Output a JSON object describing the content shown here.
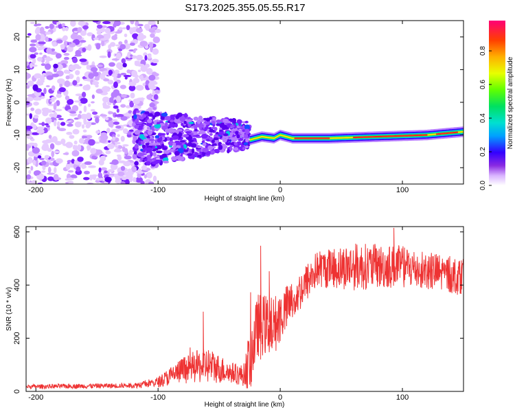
{
  "chart_data": [
    {
      "type": "heatmap",
      "title": "S173.2025.355.05.55.R17",
      "xlabel": "Height of straight line (km)",
      "ylabel": "Frequency (Hz)",
      "xlim": [
        -208,
        150
      ],
      "ylim": [
        -25,
        25
      ],
      "xticks": [
        {
          "value": -200,
          "label": "-200"
        },
        {
          "value": -100,
          "label": "-100"
        },
        {
          "value": 0,
          "label": "0"
        },
        {
          "value": 100,
          "label": "100"
        }
      ],
      "yticks": [
        {
          "value": -20,
          "label": "-20"
        },
        {
          "value": -10,
          "label": "-10"
        },
        {
          "value": 0,
          "label": "0"
        },
        {
          "value": 10,
          "label": "10"
        },
        {
          "value": 20,
          "label": "20"
        }
      ],
      "colorbar": {
        "label": "Normalized spectral amplitude",
        "range": [
          0.0,
          0.98
        ],
        "ticks": [
          {
            "value": 0.0,
            "label": "0.0"
          },
          {
            "value": 0.2,
            "label": "0.2"
          },
          {
            "value": 0.4,
            "label": "0.4"
          },
          {
            "value": 0.6,
            "label": "0.6"
          },
          {
            "value": 0.8,
            "label": "0.8"
          }
        ]
      },
      "features": [
        {
          "name": "Scattered noise region",
          "x": [
            -208,
            -100
          ],
          "y": [
            -25,
            25
          ],
          "amplitude": 0.1
        },
        {
          "name": "Dispersed cloud",
          "x": [
            -120,
            -25
          ],
          "y": [
            -22,
            -2
          ],
          "amplitude": 0.15
        },
        {
          "name": "Narrow band",
          "x": [
            -25,
            150
          ],
          "y": [
            -12,
            -9
          ],
          "peak_amplitude": 0.95
        }
      ],
      "band_trace": [
        {
          "x": -25,
          "y": -11.5
        },
        {
          "x": -15,
          "y": -10.5
        },
        {
          "x": -5,
          "y": -11
        },
        {
          "x": 0,
          "y": -10
        },
        {
          "x": 10,
          "y": -11
        },
        {
          "x": 40,
          "y": -11
        },
        {
          "x": 80,
          "y": -10.5
        },
        {
          "x": 120,
          "y": -10
        },
        {
          "x": 150,
          "y": -9
        }
      ]
    },
    {
      "type": "line",
      "xlabel": "Height of straight line (km)",
      "ylabel": "SNR (10 * v/v)",
      "xlim": [
        -208,
        150
      ],
      "ylim": [
        0,
        620
      ],
      "xticks": [
        {
          "value": -200,
          "label": "-200"
        },
        {
          "value": -100,
          "label": "-100"
        },
        {
          "value": 0,
          "label": "0"
        },
        {
          "value": 100,
          "label": "100"
        }
      ],
      "yticks": [
        {
          "value": 0,
          "label": "0"
        },
        {
          "value": 200,
          "label": "200"
        },
        {
          "value": 400,
          "label": "400"
        },
        {
          "value": 600,
          "label": "600"
        }
      ],
      "series": [
        {
          "name": "SNR",
          "color": "#ee3333",
          "envelope": [
            {
              "x": -208,
              "center": 18,
              "spread": 8
            },
            {
              "x": -120,
              "center": 22,
              "spread": 10
            },
            {
              "x": -100,
              "center": 35,
              "spread": 20
            },
            {
              "x": -80,
              "center": 80,
              "spread": 50
            },
            {
              "x": -60,
              "center": 100,
              "spread": 70
            },
            {
              "x": -40,
              "center": 70,
              "spread": 40
            },
            {
              "x": -30,
              "center": 60,
              "spread": 40
            },
            {
              "x": -25,
              "center": 120,
              "spread": 120
            },
            {
              "x": -18,
              "center": 250,
              "spread": 120
            },
            {
              "x": -5,
              "center": 250,
              "spread": 110
            },
            {
              "x": 10,
              "center": 340,
              "spread": 80
            },
            {
              "x": 30,
              "center": 460,
              "spread": 70
            },
            {
              "x": 60,
              "center": 470,
              "spread": 90
            },
            {
              "x": 100,
              "center": 470,
              "spread": 80
            },
            {
              "x": 150,
              "center": 430,
              "spread": 70
            }
          ]
        }
      ]
    }
  ]
}
